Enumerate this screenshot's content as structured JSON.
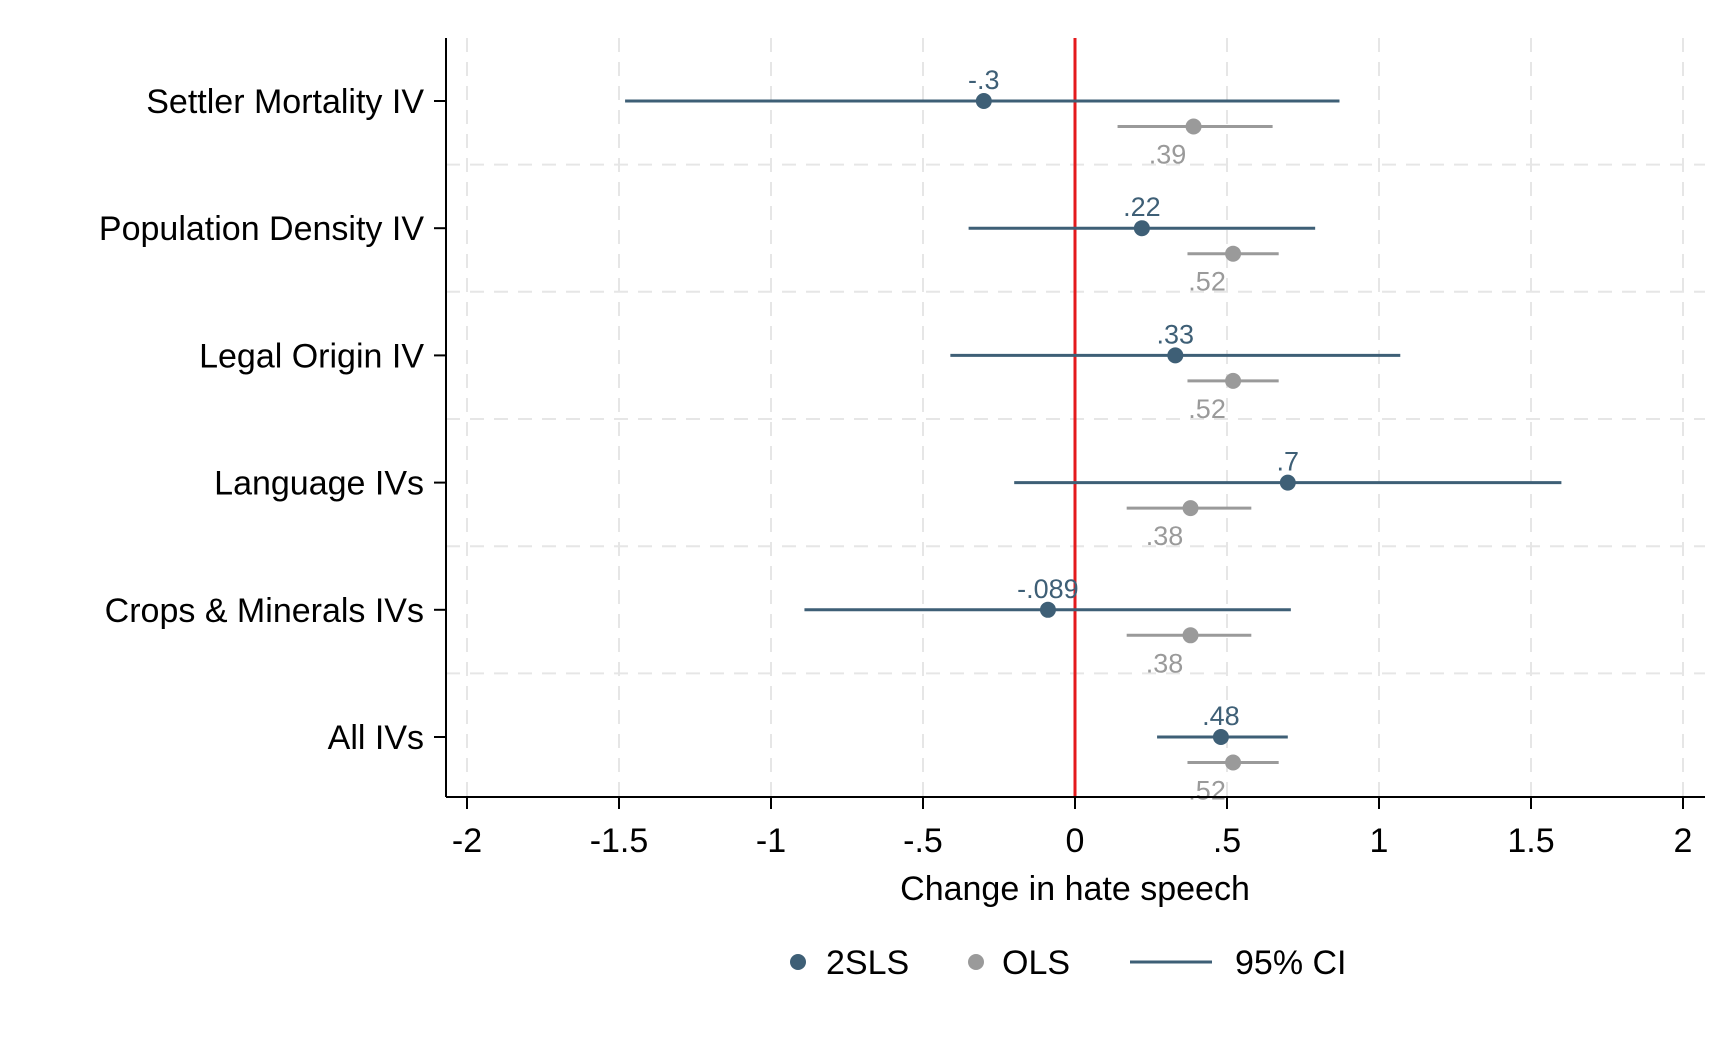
{
  "chart_data": {
    "type": "scatter",
    "subtype": "coefficient-plot",
    "title": "",
    "xlabel": "Change in hate speech",
    "ylabel": "",
    "xlim": [
      -2,
      2
    ],
    "xticks": [
      -2,
      -1.5,
      -1,
      -0.5,
      0,
      0.5,
      1,
      1.5,
      2
    ],
    "xtick_labels": [
      "-2",
      "-1.5",
      "-1",
      "-.5",
      "0",
      ".5",
      "1",
      "1.5",
      "2"
    ],
    "grid": true,
    "reference_line": {
      "x": 0,
      "color": "#e41a1c"
    },
    "categories": [
      "Settler Mortality IV",
      "Population Density IV",
      "Legal Origin IV",
      "Language IVs",
      "Crops & Minerals IVs",
      "All IVs"
    ],
    "series": [
      {
        "name": "2SLS",
        "color": "#3e5f76",
        "estimates": [
          -0.3,
          0.22,
          0.33,
          0.7,
          -0.089,
          0.48
        ],
        "labels": [
          "-.3",
          ".22",
          ".33",
          ".7",
          "-.089",
          ".48"
        ],
        "ci_low": [
          -1.48,
          -0.35,
          -0.41,
          -0.2,
          -0.89,
          0.27
        ],
        "ci_high": [
          0.87,
          0.79,
          1.07,
          1.6,
          0.71,
          0.7
        ]
      },
      {
        "name": "OLS",
        "color": "#9a9a9a",
        "estimates": [
          0.39,
          0.52,
          0.52,
          0.38,
          0.38,
          0.52
        ],
        "labels": [
          ".39",
          ".52",
          ".52",
          ".38",
          ".38",
          ".52"
        ],
        "ci_low": [
          0.14,
          0.37,
          0.37,
          0.17,
          0.17,
          0.37
        ],
        "ci_high": [
          0.65,
          0.67,
          0.67,
          0.58,
          0.58,
          0.67
        ]
      }
    ],
    "legend": {
      "position": "bottom",
      "items": [
        {
          "label": "2SLS",
          "symbol": "dot",
          "color": "#3e5f76"
        },
        {
          "label": "OLS",
          "symbol": "dot",
          "color": "#9a9a9a"
        },
        {
          "label": "95% CI",
          "symbol": "line",
          "color": "#3e5f76"
        }
      ]
    }
  }
}
